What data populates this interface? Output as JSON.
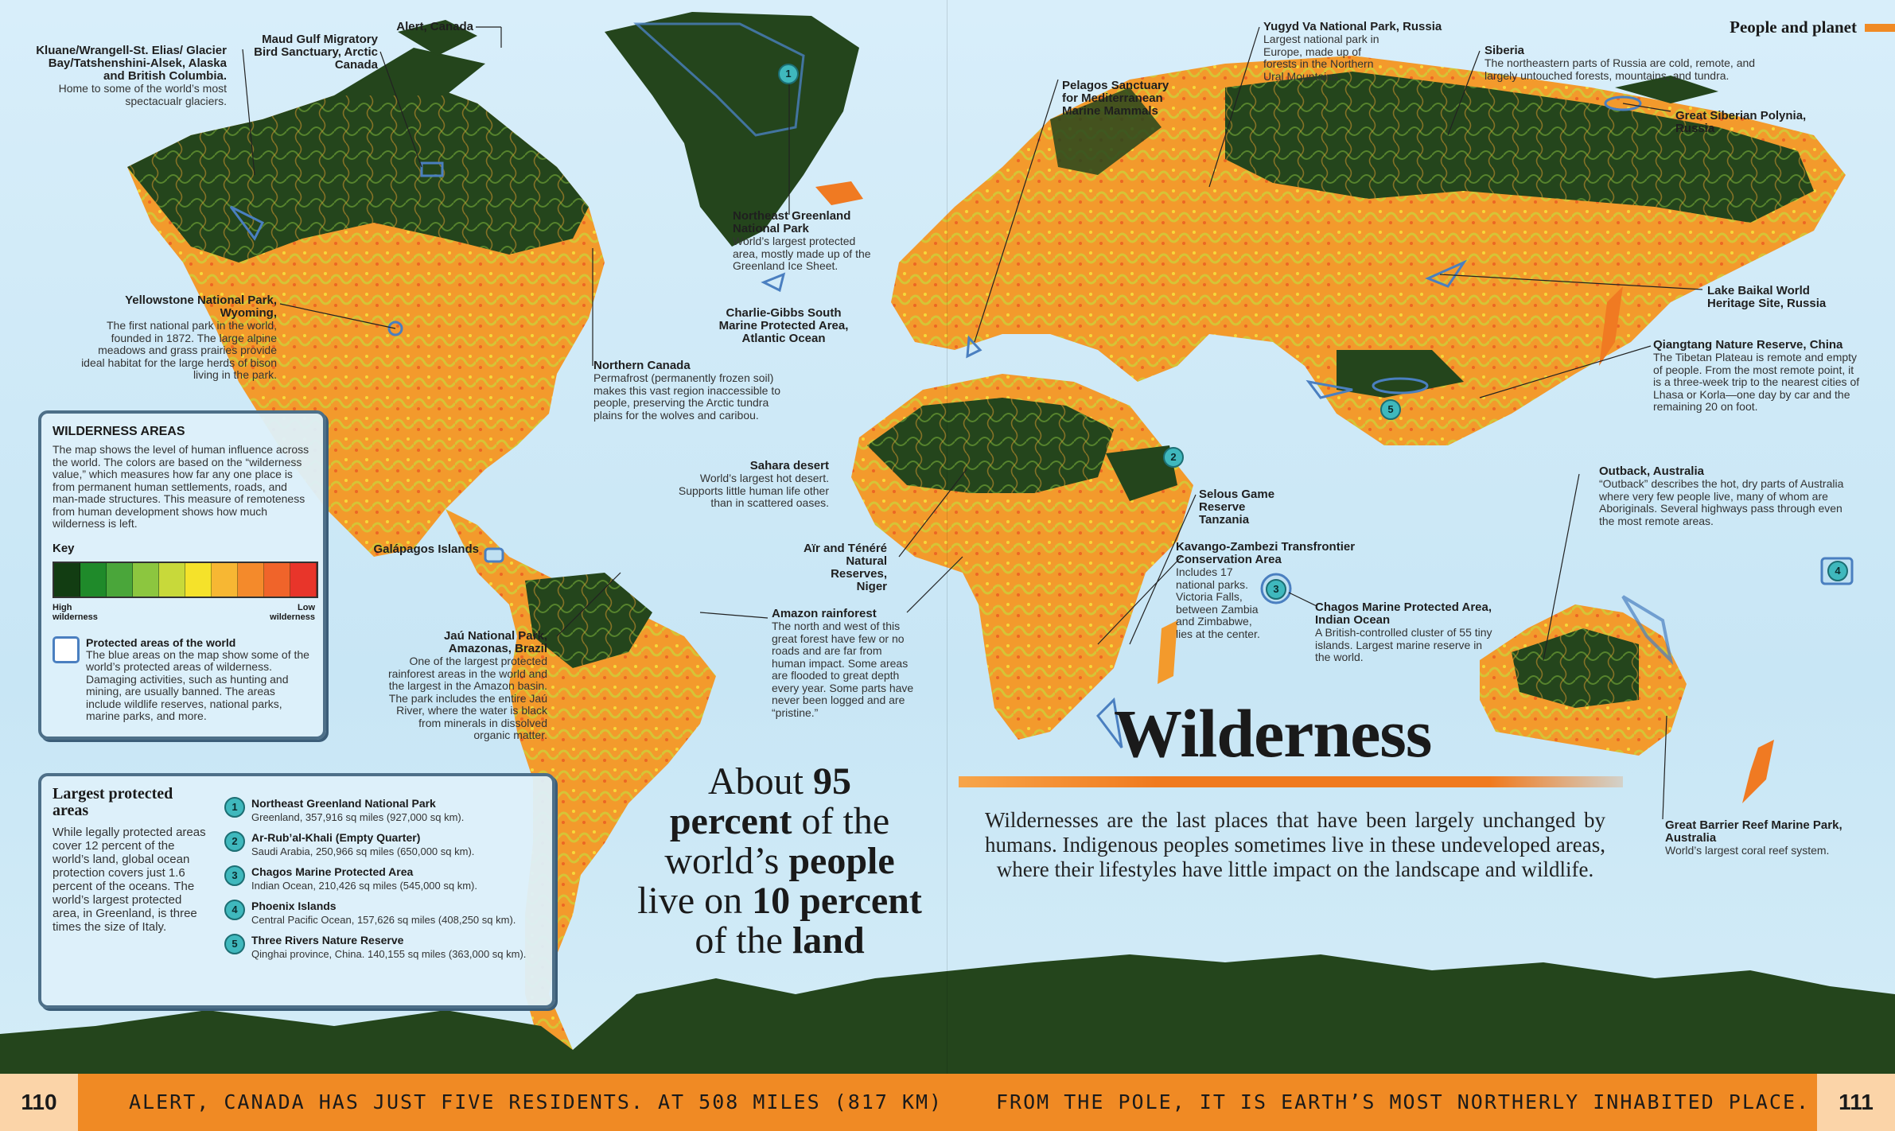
{
  "header": {
    "section": "People and planet"
  },
  "title": "Wilderness",
  "intro": "Wildernesses are the last places that have been largely unchanged by humans. Indigenous peoples sometimes live in these undeveloped areas, where their lifestyles have little impact on the landscape and wildlife.",
  "fact": {
    "p1": "About ",
    "p2": "95",
    "p3": "percent",
    "p4": " of the world’s ",
    "p5": "people",
    "p6": "live on ",
    "p7": "10 percent",
    "p8": "of the ",
    "p9": "land"
  },
  "footer": {
    "page_left": "110",
    "page_right": "111",
    "text_left": "ALERT, CANADA HAS JUST FIVE RESIDENTS. AT 508 MILES (817 KM)",
    "text_right": "FROM THE POLE, IT IS EARTH’S MOST NORTHERLY INHABITED PLACE."
  },
  "key_panel": {
    "title": "WILDERNESS AREAS",
    "text": "The map shows the level of human influence across the world. The colors are based on the “wilderness value,” which measures how far any one place is from permanent human settlements, roads, and man-made structures. This measure of remoteness from human development shows how much wilderness is left.",
    "key_label": "Key",
    "key_high": "High wilderness",
    "key_low": "Low wilderness",
    "key_colors": [
      "#123d12",
      "#1f8a2a",
      "#4aa63a",
      "#8cc63f",
      "#c8d93a",
      "#f5e22a",
      "#f7b733",
      "#f48a2b",
      "#f0642a",
      "#e8352a"
    ],
    "protected_title": "Protected areas of the world",
    "protected_text": "The blue areas on the map show some of the world’s protected areas of wilderness. Damaging activities, such as hunting and mining, are usually banned. The areas include wildlife reserves, national parks, marine parks, and more."
  },
  "largest_panel": {
    "title": "Largest protected areas",
    "text": "While legally protected areas cover 12 percent of the world’s land, global ocean protection covers just 1.6 percent of the oceans. The world’s largest protected area, in Greenland, is three times the size of Italy.",
    "items": [
      {
        "num": "1",
        "name": "Northeast Greenland National Park",
        "desc": "Greenland, 357,916 sq miles (927,000 sq km)."
      },
      {
        "num": "2",
        "name": "Ar-Rub’al-Khali (Empty Quarter)",
        "desc": "Saudi Arabia, 250,966 sq miles (650,000 sq km)."
      },
      {
        "num": "3",
        "name": "Chagos Marine Protected Area",
        "desc": "Indian Ocean, 210,426 sq miles (545,000 sq km)."
      },
      {
        "num": "4",
        "name": "Phoenix Islands",
        "desc": "Central Pacific Ocean, 157,626 sq miles (408,250 sq km)."
      },
      {
        "num": "5",
        "name": "Three Rivers Nature Reserve",
        "desc": "Qinghai province, China. 140,155 sq miles (363,000 sq km)."
      }
    ]
  },
  "labels": {
    "alert": {
      "name": "Alert, Canada"
    },
    "maud": {
      "name": "Maud Gulf Migratory Bird Sanctuary, Arctic Canada"
    },
    "kluane": {
      "name": "Kluane/Wrangell-St. Elias/ Glacier Bay/Tatshenshini-Alsek, Alaska and British Columbia.",
      "desc": "Home to some of the world’s most spectacualr glaciers."
    },
    "yellowstone": {
      "name": "Yellowstone National Park, Wyoming,",
      "desc": "The first national park in the world, founded in 1872. The large alpine meadows and grass prairies provide ideal habitat for the large herds of bison living in the park."
    },
    "negreenland": {
      "name": "Northeast Greenland National Park",
      "desc": "World’s largest protected area, mostly made up of the Greenland Ice Sheet."
    },
    "charlie": {
      "name": "Charlie-Gibbs South Marine Protected Area, Atlantic Ocean"
    },
    "northcanada": {
      "name": "Northern Canada",
      "desc": "Permafrost (permanently frozen soil) makes this vast region inaccessible to people, preserving the Arctic tundra plains for the wolves and caribou."
    },
    "galapagos": {
      "name": "Galápagos Islands"
    },
    "jau": {
      "name": "Jaú National Park, Amazonas, Brazil",
      "desc": "One of the largest protected rainforest areas in the world and the largest in the Amazon basin. The park includes the entire Jaú River, where the water is black from minerals in dissolved organic matter."
    },
    "sahara": {
      "name": "Sahara desert",
      "desc": "World’s largest hot desert. Supports little human life other than in scattered oases."
    },
    "air": {
      "name": "Aïr and Ténéré Natural Reserves, Niger"
    },
    "amazon": {
      "name": "Amazon rainforest",
      "desc": "The north and west of this great forest have few or no roads and are far from human impact. Some areas are flooded to great depth every year. Some parts have never been logged and are “pristine.”"
    },
    "pelagos": {
      "name": "Pelagos Sanctuary for Mediterranean Marine Mammals"
    },
    "yugyd": {
      "name": "Yugyd Va National Park, Russia",
      "desc": "Largest national park in Europe, made up of forests in the Northern Ural Mountains."
    },
    "siberia": {
      "name": "Siberia",
      "desc": "The northeastern parts of Russia are cold, remote, and largely untouched forests, mountains, and tundra."
    },
    "polynia": {
      "name": "Great Siberian Polynia, Russia"
    },
    "baikal": {
      "name": "Lake Baikal World Heritage Site, Russia"
    },
    "qiangtang": {
      "name": "Qiangtang Nature Reserve, China",
      "desc": "The Tibetan Plateau is remote and empty of people. From the most remote point, it is a three-week trip to the nearest cities of Lhasa or Korla—one day by car and the remaining 20 on foot."
    },
    "selous": {
      "name": "Selous Game Reserve Tanzania"
    },
    "kavango": {
      "name": "Kavango-Zambezi Transfrontier Conservation Area",
      "desc": "Includes 17 national parks. Victoria Falls, between Zambia and Zimbabwe, lies at the center."
    },
    "chagos": {
      "name": "Chagos Marine Protected Area, Indian Ocean",
      "desc": "A British-controlled cluster of 55 tiny islands. Largest marine reserve in the world."
    },
    "outback": {
      "name": "Outback, Australia",
      "desc": "“Outback” describes the hot, dry parts of Australia where very few people live, many of whom are Aboriginals. Several highways pass through even the most remote areas."
    },
    "gbr": {
      "name": "Great Barrier Reef Marine Park, Australia",
      "desc": "World’s largest coral reef system."
    }
  },
  "colors": {
    "ocean": "#cfe9f6",
    "wild": "#24451c",
    "low": "#f08a24",
    "mid": "#f5c23a",
    "accent": "#f08a24",
    "protected": "#4a7fc0"
  }
}
